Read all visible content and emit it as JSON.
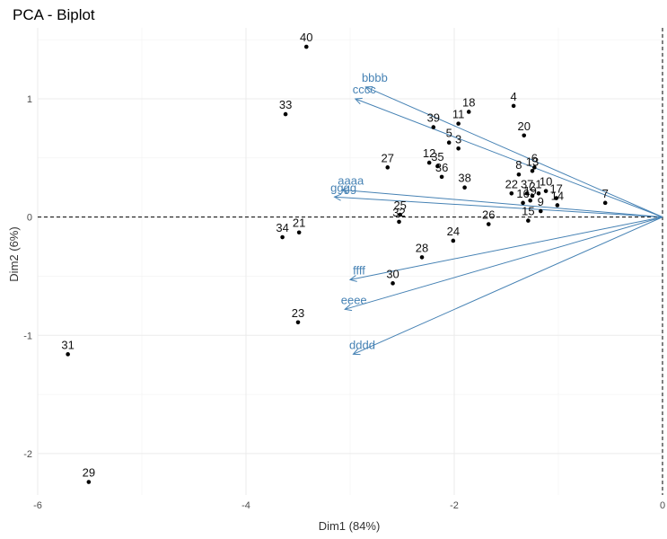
{
  "chart_data": {
    "type": "scatter",
    "title": "PCA - Biplot",
    "xlabel": "Dim1 (84%)",
    "ylabel": "Dim2 (6%)",
    "xlim": [
      -6.0,
      0.0
    ],
    "ylim": [
      -2.35,
      1.6
    ],
    "xticks": [
      -6,
      -4,
      -2,
      0
    ],
    "yticks": [
      -2,
      -1,
      0,
      1
    ],
    "grid": true,
    "reference_lines": {
      "x": 0,
      "y": 0,
      "style": "dashed"
    },
    "point_color": "#000000",
    "arrow_color": "#4682b4",
    "individuals": [
      {
        "label": "1",
        "x": -1.19,
        "y": 0.2
      },
      {
        "label": "2",
        "x": -1.25,
        "y": 0.18
      },
      {
        "label": "3",
        "x": -1.96,
        "y": 0.58
      },
      {
        "label": "4",
        "x": -1.43,
        "y": 0.94
      },
      {
        "label": "5",
        "x": -2.05,
        "y": 0.63
      },
      {
        "label": "6",
        "x": -1.23,
        "y": 0.42
      },
      {
        "label": "7",
        "x": -0.55,
        "y": 0.12
      },
      {
        "label": "8",
        "x": -1.38,
        "y": 0.36
      },
      {
        "label": "9",
        "x": -1.17,
        "y": 0.05
      },
      {
        "label": "10",
        "x": -1.12,
        "y": 0.22
      },
      {
        "label": "11",
        "x": -1.96,
        "y": 0.79
      },
      {
        "label": "12",
        "x": -2.24,
        "y": 0.46
      },
      {
        "label": "13",
        "x": -1.25,
        "y": 0.39
      },
      {
        "label": "14",
        "x": -1.01,
        "y": 0.1
      },
      {
        "label": "15",
        "x": -1.29,
        "y": -0.03
      },
      {
        "label": "16",
        "x": -1.34,
        "y": 0.12
      },
      {
        "label": "17",
        "x": -1.02,
        "y": 0.16
      },
      {
        "label": "18",
        "x": -1.86,
        "y": 0.89
      },
      {
        "label": "19",
        "x": -1.27,
        "y": 0.14
      },
      {
        "label": "20",
        "x": -1.33,
        "y": 0.69
      },
      {
        "label": "21",
        "x": -3.49,
        "y": -0.13
      },
      {
        "label": "22",
        "x": -1.45,
        "y": 0.2
      },
      {
        "label": "23",
        "x": -3.5,
        "y": -0.89
      },
      {
        "label": "24",
        "x": -2.01,
        "y": -0.2
      },
      {
        "label": "25",
        "x": -2.52,
        "y": 0.02
      },
      {
        "label": "26",
        "x": -1.67,
        "y": -0.06
      },
      {
        "label": "27",
        "x": -2.64,
        "y": 0.42
      },
      {
        "label": "28",
        "x": -2.31,
        "y": -0.34
      },
      {
        "label": "29",
        "x": -5.51,
        "y": -2.24
      },
      {
        "label": "30",
        "x": -2.59,
        "y": -0.56
      },
      {
        "label": "31",
        "x": -5.71,
        "y": -1.16
      },
      {
        "label": "32",
        "x": -2.53,
        "y": -0.04
      },
      {
        "label": "33",
        "x": -3.62,
        "y": 0.87
      },
      {
        "label": "34",
        "x": -3.65,
        "y": -0.17
      },
      {
        "label": "35",
        "x": -2.16,
        "y": 0.43
      },
      {
        "label": "36",
        "x": -2.12,
        "y": 0.34
      },
      {
        "label": "37",
        "x": -1.3,
        "y": 0.2
      },
      {
        "label": "38",
        "x": -1.9,
        "y": 0.25
      },
      {
        "label": "39",
        "x": -2.2,
        "y": 0.76
      },
      {
        "label": "40",
        "x": -3.42,
        "y": 1.44
      }
    ],
    "variables": [
      {
        "label": "aaaa",
        "x": -3.08,
        "y": 0.23
      },
      {
        "label": "bbbb",
        "x": -2.85,
        "y": 1.1
      },
      {
        "label": "cccc",
        "x": -2.95,
        "y": 1.0
      },
      {
        "label": "dddd",
        "x": -2.97,
        "y": -1.16
      },
      {
        "label": "eeee",
        "x": -3.05,
        "y": -0.78
      },
      {
        "label": "ffff",
        "x": -3.0,
        "y": -0.53
      },
      {
        "label": "gggg",
        "x": -3.15,
        "y": 0.17
      }
    ]
  }
}
